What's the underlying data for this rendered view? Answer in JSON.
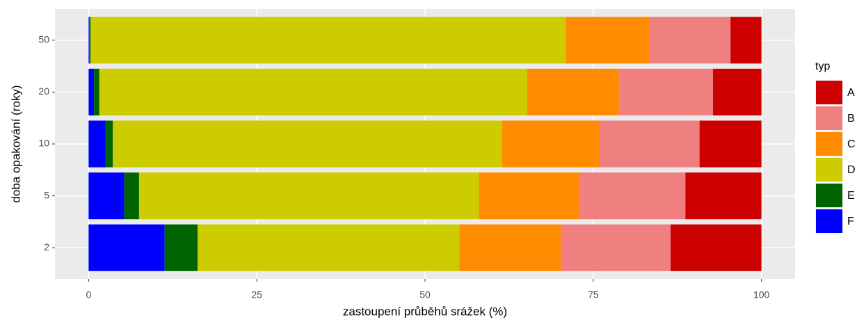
{
  "chart_data": {
    "type": "stacked-bar-horizontal",
    "x_label": "zastoupení průběhů srážek (%)",
    "y_label": "doba opakování (roky)",
    "legend_title": "typ",
    "legend": "right",
    "grid": true,
    "categories": [
      "2",
      "5",
      "10",
      "20",
      "50"
    ],
    "series": [
      {
        "name": "A",
        "color": "#cc0000",
        "values": [
          13.5,
          11.3,
          9.2,
          7.2,
          4.6
        ]
      },
      {
        "name": "B",
        "color": "#f08080",
        "values": [
          16.3,
          15.8,
          14.9,
          14.0,
          12.0
        ]
      },
      {
        "name": "C",
        "color": "#ff8c00",
        "values": [
          15.1,
          14.9,
          14.5,
          13.6,
          12.5
        ]
      },
      {
        "name": "D",
        "color": "#cccc00",
        "values": [
          38.9,
          50.5,
          57.8,
          63.6,
          70.6
        ]
      },
      {
        "name": "E",
        "color": "#006400",
        "values": [
          4.9,
          2.2,
          1.1,
          0.8,
          0.2
        ]
      },
      {
        "name": "F",
        "color": "#0000ff",
        "values": [
          11.3,
          5.3,
          2.5,
          0.8,
          0.1
        ]
      }
    ],
    "xlim": [
      -5,
      105
    ],
    "xticks": [
      0,
      25,
      50,
      75,
      100
    ]
  }
}
